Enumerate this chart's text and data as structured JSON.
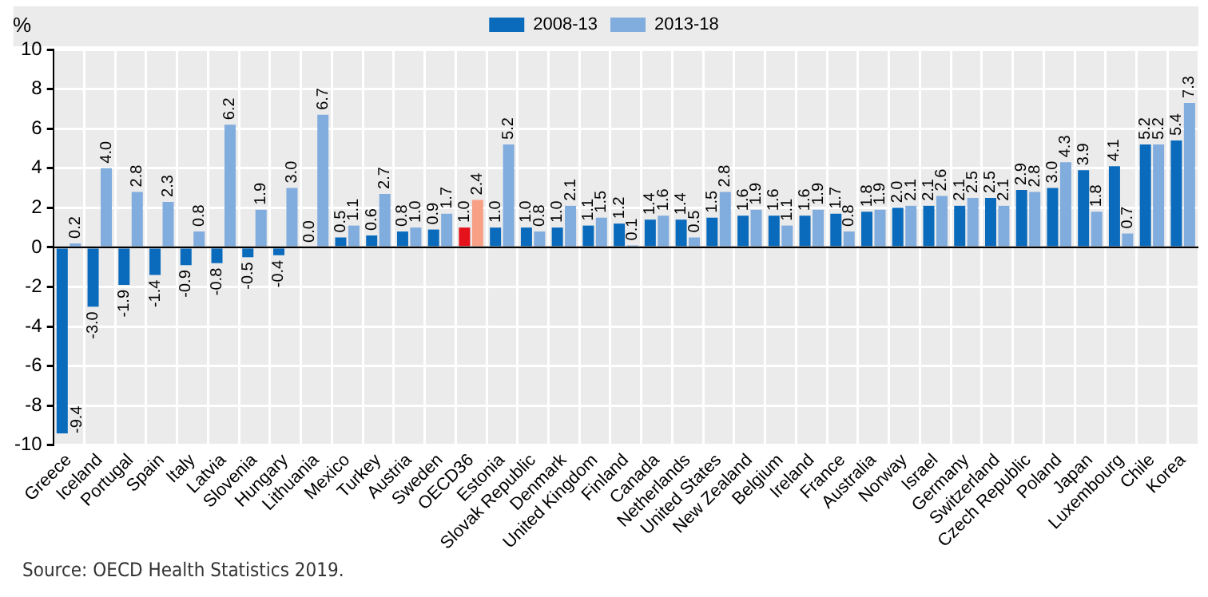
{
  "chart_data": {
    "type": "bar",
    "ylabel": "%",
    "categories": [
      "Greece",
      "Iceland",
      "Portugal",
      "Spain",
      "Italy",
      "Latvia",
      "Slovenia",
      "Hungary",
      "Lithuania",
      "Mexico",
      "Turkey",
      "Austria",
      "Sweden",
      "OECD36",
      "Estonia",
      "Slovak Republic",
      "Denmark",
      "United Kingdom",
      "Finland",
      "Canada",
      "Netherlands",
      "United States",
      "New Zealand",
      "Belgium",
      "Ireland",
      "France",
      "Australia",
      "Norway",
      "Israel",
      "Germany",
      "Switzerland",
      "Czech Republic",
      "Poland",
      "Japan",
      "Luxembourg",
      "Chile",
      "Korea"
    ],
    "series": [
      {
        "name": "2008-13",
        "color": "#0a6bbd",
        "colors": [
          "#0a6bbd",
          "#0a6bbd",
          "#0a6bbd",
          "#0a6bbd",
          "#0a6bbd",
          "#0a6bbd",
          "#0a6bbd",
          "#0a6bbd",
          "#0a6bbd",
          "#0a6bbd",
          "#0a6bbd",
          "#0a6bbd",
          "#0a6bbd",
          "#e5111b",
          "#0a6bbd",
          "#0a6bbd",
          "#0a6bbd",
          "#0a6bbd",
          "#0a6bbd",
          "#0a6bbd",
          "#0a6bbd",
          "#0a6bbd",
          "#0a6bbd",
          "#0a6bbd",
          "#0a6bbd",
          "#0a6bbd",
          "#0a6bbd",
          "#0a6bbd",
          "#0a6bbd",
          "#0a6bbd",
          "#0a6bbd",
          "#0a6bbd",
          "#0a6bbd",
          "#0a6bbd",
          "#0a6bbd",
          "#0a6bbd",
          "#0a6bbd"
        ],
        "values": [
          -9.4,
          -3.0,
          -1.9,
          -1.4,
          -0.9,
          -0.8,
          -0.5,
          -0.4,
          0.0,
          0.5,
          0.6,
          0.8,
          0.9,
          1.0,
          1.0,
          1.0,
          1.0,
          1.1,
          1.2,
          1.4,
          1.4,
          1.5,
          1.6,
          1.6,
          1.6,
          1.7,
          1.8,
          2.0,
          2.1,
          2.1,
          2.5,
          2.9,
          3.0,
          3.9,
          4.1,
          5.2,
          5.4
        ],
        "value_labels": [
          "-9.4",
          "-3.0",
          "-1.9",
          "-1.4",
          "-0.9",
          "-0.8",
          "-0.5",
          "-0.4",
          "0.0",
          "0.5",
          "0.6",
          "0.8",
          "0.9",
          "1.0",
          "1.0",
          "1.0",
          "1.0",
          "1.1",
          "1.2",
          "1.4",
          "1.4",
          "1.5",
          "1.6",
          "1.6",
          "1.6",
          "1.7",
          "1.8",
          "2.0",
          "2.1",
          "2.1",
          "2.5",
          "2.9",
          "3.0",
          "3.9",
          "4.1",
          "5.2",
          "5.4"
        ]
      },
      {
        "name": "2013-18",
        "color": "#80acde",
        "colors": [
          "#80acde",
          "#80acde",
          "#80acde",
          "#80acde",
          "#80acde",
          "#80acde",
          "#80acde",
          "#80acde",
          "#80acde",
          "#80acde",
          "#80acde",
          "#80acde",
          "#80acde",
          "#f7a086",
          "#80acde",
          "#80acde",
          "#80acde",
          "#80acde",
          "#80acde",
          "#80acde",
          "#80acde",
          "#80acde",
          "#80acde",
          "#80acde",
          "#80acde",
          "#80acde",
          "#80acde",
          "#80acde",
          "#80acde",
          "#80acde",
          "#80acde",
          "#80acde",
          "#80acde",
          "#80acde",
          "#80acde",
          "#80acde",
          "#80acde"
        ],
        "values": [
          0.2,
          4.0,
          2.8,
          2.3,
          0.8,
          6.2,
          1.9,
          3.0,
          6.7,
          1.1,
          2.7,
          1.0,
          1.7,
          2.4,
          5.2,
          0.8,
          2.1,
          1.5,
          0.1,
          1.6,
          0.5,
          2.8,
          1.9,
          1.1,
          1.9,
          0.8,
          1.9,
          2.1,
          2.6,
          2.5,
          2.1,
          2.8,
          4.3,
          1.8,
          0.7,
          5.2,
          7.3
        ],
        "value_labels": [
          "0.2",
          "4.0",
          "2.8",
          "2.3",
          "0.8",
          "6.2",
          "1.9",
          "3.0",
          "6.7",
          "1.1",
          "2.7",
          "1.0",
          "1.7",
          "2.4",
          "5.2",
          "0.8",
          "2.1",
          "1.5",
          "0.1",
          "1.6",
          "0.5",
          "2.8",
          "1.9",
          "1.1",
          "1.9",
          "0.8",
          "1.9",
          "2.1",
          "2.6",
          "2.5",
          "2.1",
          "2.8",
          "4.3",
          "1.8",
          "0.7",
          "5.2",
          "7.3"
        ]
      }
    ],
    "ylim": [
      -10,
      10
    ],
    "yticks": [
      -10,
      -8,
      -6,
      -4,
      -2,
      0,
      2,
      4,
      6,
      8,
      10
    ],
    "grid": true,
    "legend": "top",
    "annotations": [
      "Source: OECD Health Statistics 2019."
    ]
  }
}
